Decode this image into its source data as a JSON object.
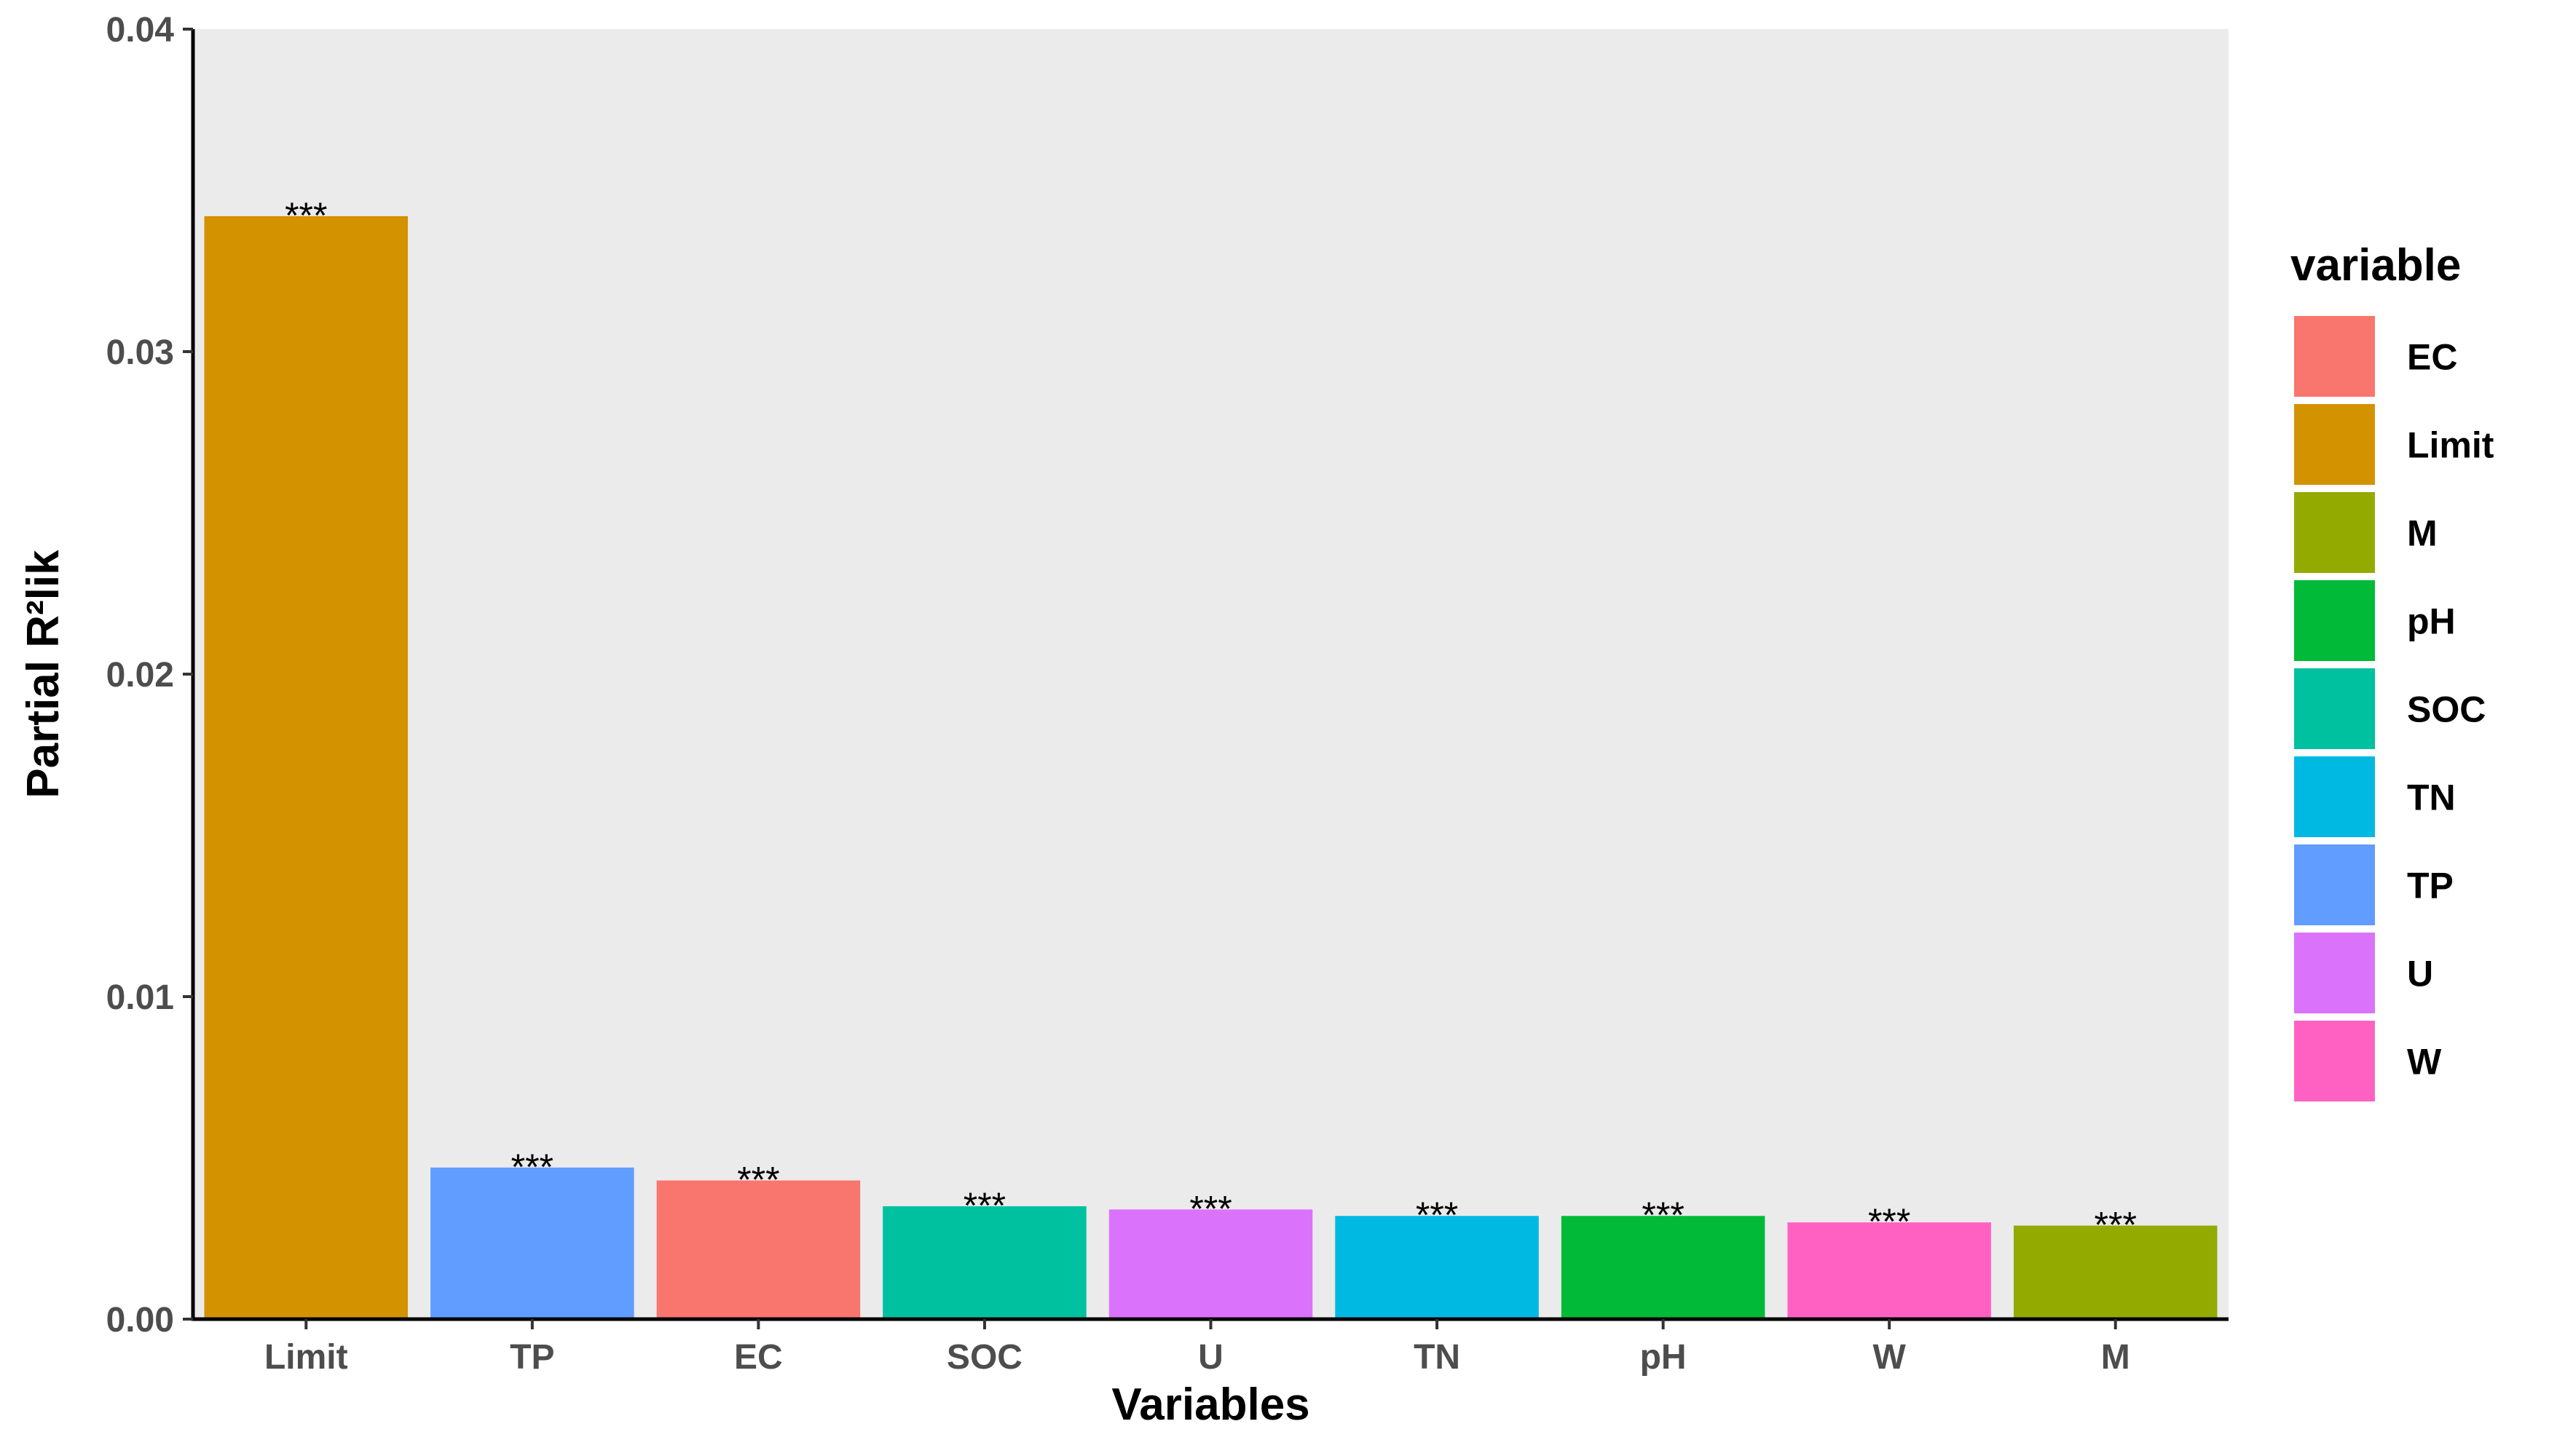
{
  "chart_data": {
    "type": "bar",
    "categories": [
      "Limit",
      "TP",
      "EC",
      "SOC",
      "U",
      "TN",
      "pH",
      "W",
      "M"
    ],
    "values": [
      0.0342,
      0.0047,
      0.0043,
      0.0035,
      0.0034,
      0.0032,
      0.0032,
      0.003,
      0.0029
    ],
    "labels": [
      "***",
      "***",
      "***",
      "***",
      "***",
      "***",
      "***",
      "***",
      "***"
    ],
    "xlabel": "Variables",
    "ylabel": "Partial R²lik",
    "ylim": [
      0,
      0.04
    ],
    "yticks": [
      "0.00",
      "0.01",
      "0.02",
      "0.03",
      "0.04"
    ],
    "ytick_values": [
      0,
      0.01,
      0.02,
      0.03,
      0.04
    ],
    "grid": false,
    "panel_background": "#EBEBEB",
    "legend": {
      "title": "variable",
      "placement": "right",
      "entries": [
        "EC",
        "Limit",
        "M",
        "pH",
        "SOC",
        "TN",
        "TP",
        "U",
        "W"
      ]
    },
    "colors": {
      "EC": "#F8766D",
      "Limit": "#D39200",
      "M": "#93AA00",
      "pH": "#00BA38",
      "SOC": "#00C19F",
      "TN": "#00B9E3",
      "TP": "#619CFF",
      "U": "#DB72FB",
      "W": "#FF61C3"
    }
  }
}
